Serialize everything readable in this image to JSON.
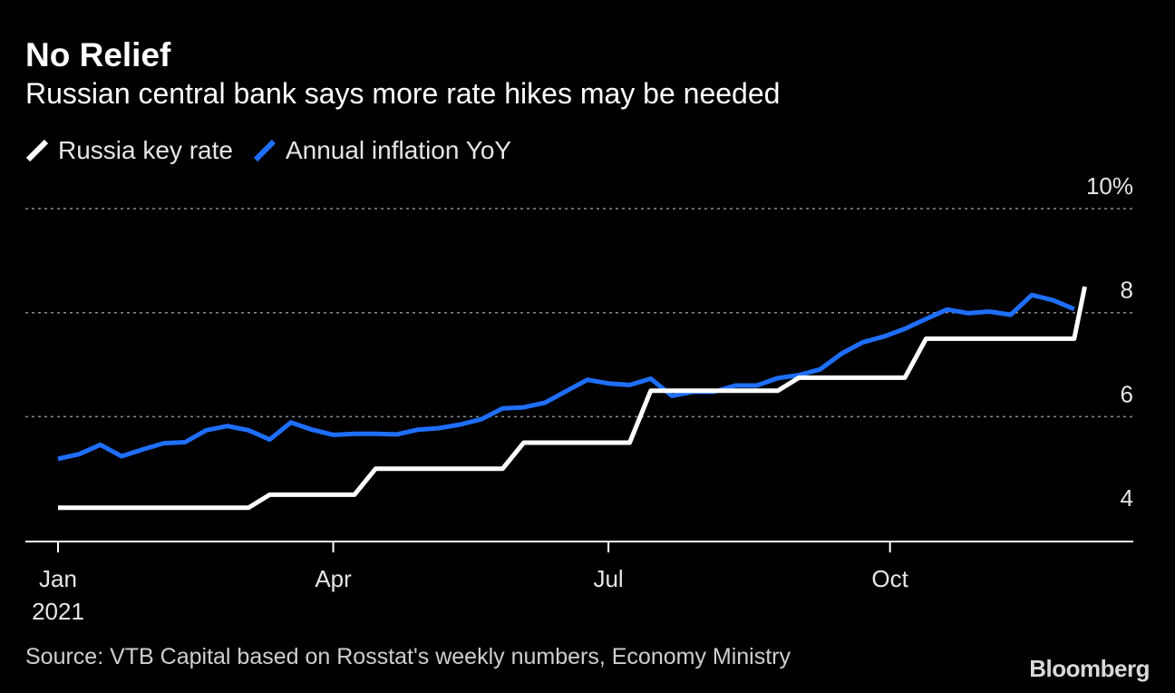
{
  "title": "No Relief",
  "subtitle": "Russian central bank says more rate hikes may be needed",
  "legend": [
    {
      "label": "Russia key rate",
      "color": "#ffffff"
    },
    {
      "label": "Annual inflation YoY",
      "color": "#1f6fff"
    }
  ],
  "source": "Source: VTB Capital based on Rosstat's weekly numbers, Economy Ministry",
  "brand": "Bloomberg",
  "chart_data": {
    "type": "line",
    "x_unit": "week index from start of Jan 2021",
    "ylim": [
      3.6,
      10
    ],
    "y_ticks": [
      {
        "value": 10,
        "label": "10%"
      },
      {
        "value": 8,
        "label": "8"
      },
      {
        "value": 6,
        "label": "6"
      },
      {
        "value": 4,
        "label": "4"
      }
    ],
    "x_ticks": [
      {
        "week": 0,
        "label": "Jan",
        "sublabel": "2021"
      },
      {
        "week": 13,
        "label": "Apr"
      },
      {
        "week": 26,
        "label": "Jul"
      },
      {
        "week": 39.3,
        "label": "Oct"
      }
    ],
    "x_range": [
      -1.5,
      51
    ],
    "grid": true,
    "series": [
      {
        "name": "Russia key rate",
        "color": "#ffffff",
        "points": [
          [
            0,
            4.25
          ],
          [
            9,
            4.25
          ],
          [
            10,
            4.5
          ],
          [
            14,
            4.5
          ],
          [
            15,
            5.0
          ],
          [
            21,
            5.0
          ],
          [
            22,
            5.5
          ],
          [
            27,
            5.5
          ],
          [
            28,
            6.5
          ],
          [
            34,
            6.5
          ],
          [
            35,
            6.75
          ],
          [
            40,
            6.75
          ],
          [
            41,
            7.5
          ],
          [
            48,
            7.5
          ],
          [
            48.5,
            8.5
          ]
        ]
      },
      {
        "name": "Annual inflation YoY",
        "color": "#1f6fff",
        "points": [
          [
            0,
            5.19
          ],
          [
            1,
            5.28
          ],
          [
            2,
            5.46
          ],
          [
            3,
            5.24
          ],
          [
            4,
            5.37
          ],
          [
            5,
            5.49
          ],
          [
            6,
            5.51
          ],
          [
            7,
            5.74
          ],
          [
            8,
            5.82
          ],
          [
            9,
            5.74
          ],
          [
            10,
            5.56
          ],
          [
            11,
            5.89
          ],
          [
            12,
            5.75
          ],
          [
            13,
            5.65
          ],
          [
            14,
            5.67
          ],
          [
            15,
            5.67
          ],
          [
            16,
            5.66
          ],
          [
            17,
            5.75
          ],
          [
            18,
            5.78
          ],
          [
            19,
            5.85
          ],
          [
            20,
            5.95
          ],
          [
            21,
            6.16
          ],
          [
            22,
            6.18
          ],
          [
            23,
            6.27
          ],
          [
            24,
            6.49
          ],
          [
            25,
            6.71
          ],
          [
            26,
            6.64
          ],
          [
            27,
            6.61
          ],
          [
            28,
            6.73
          ],
          [
            29,
            6.4
          ],
          [
            30,
            6.48
          ],
          [
            31,
            6.48
          ],
          [
            32,
            6.6
          ],
          [
            33,
            6.6
          ],
          [
            34,
            6.74
          ],
          [
            35,
            6.8
          ],
          [
            36,
            6.91
          ],
          [
            37,
            7.21
          ],
          [
            38,
            7.43
          ],
          [
            39,
            7.54
          ],
          [
            40,
            7.69
          ],
          [
            41,
            7.88
          ],
          [
            42,
            8.06
          ],
          [
            43,
            7.99
          ],
          [
            44,
            8.02
          ],
          [
            45,
            7.96
          ],
          [
            46,
            8.34
          ],
          [
            47,
            8.24
          ],
          [
            48,
            8.07
          ]
        ]
      }
    ]
  }
}
